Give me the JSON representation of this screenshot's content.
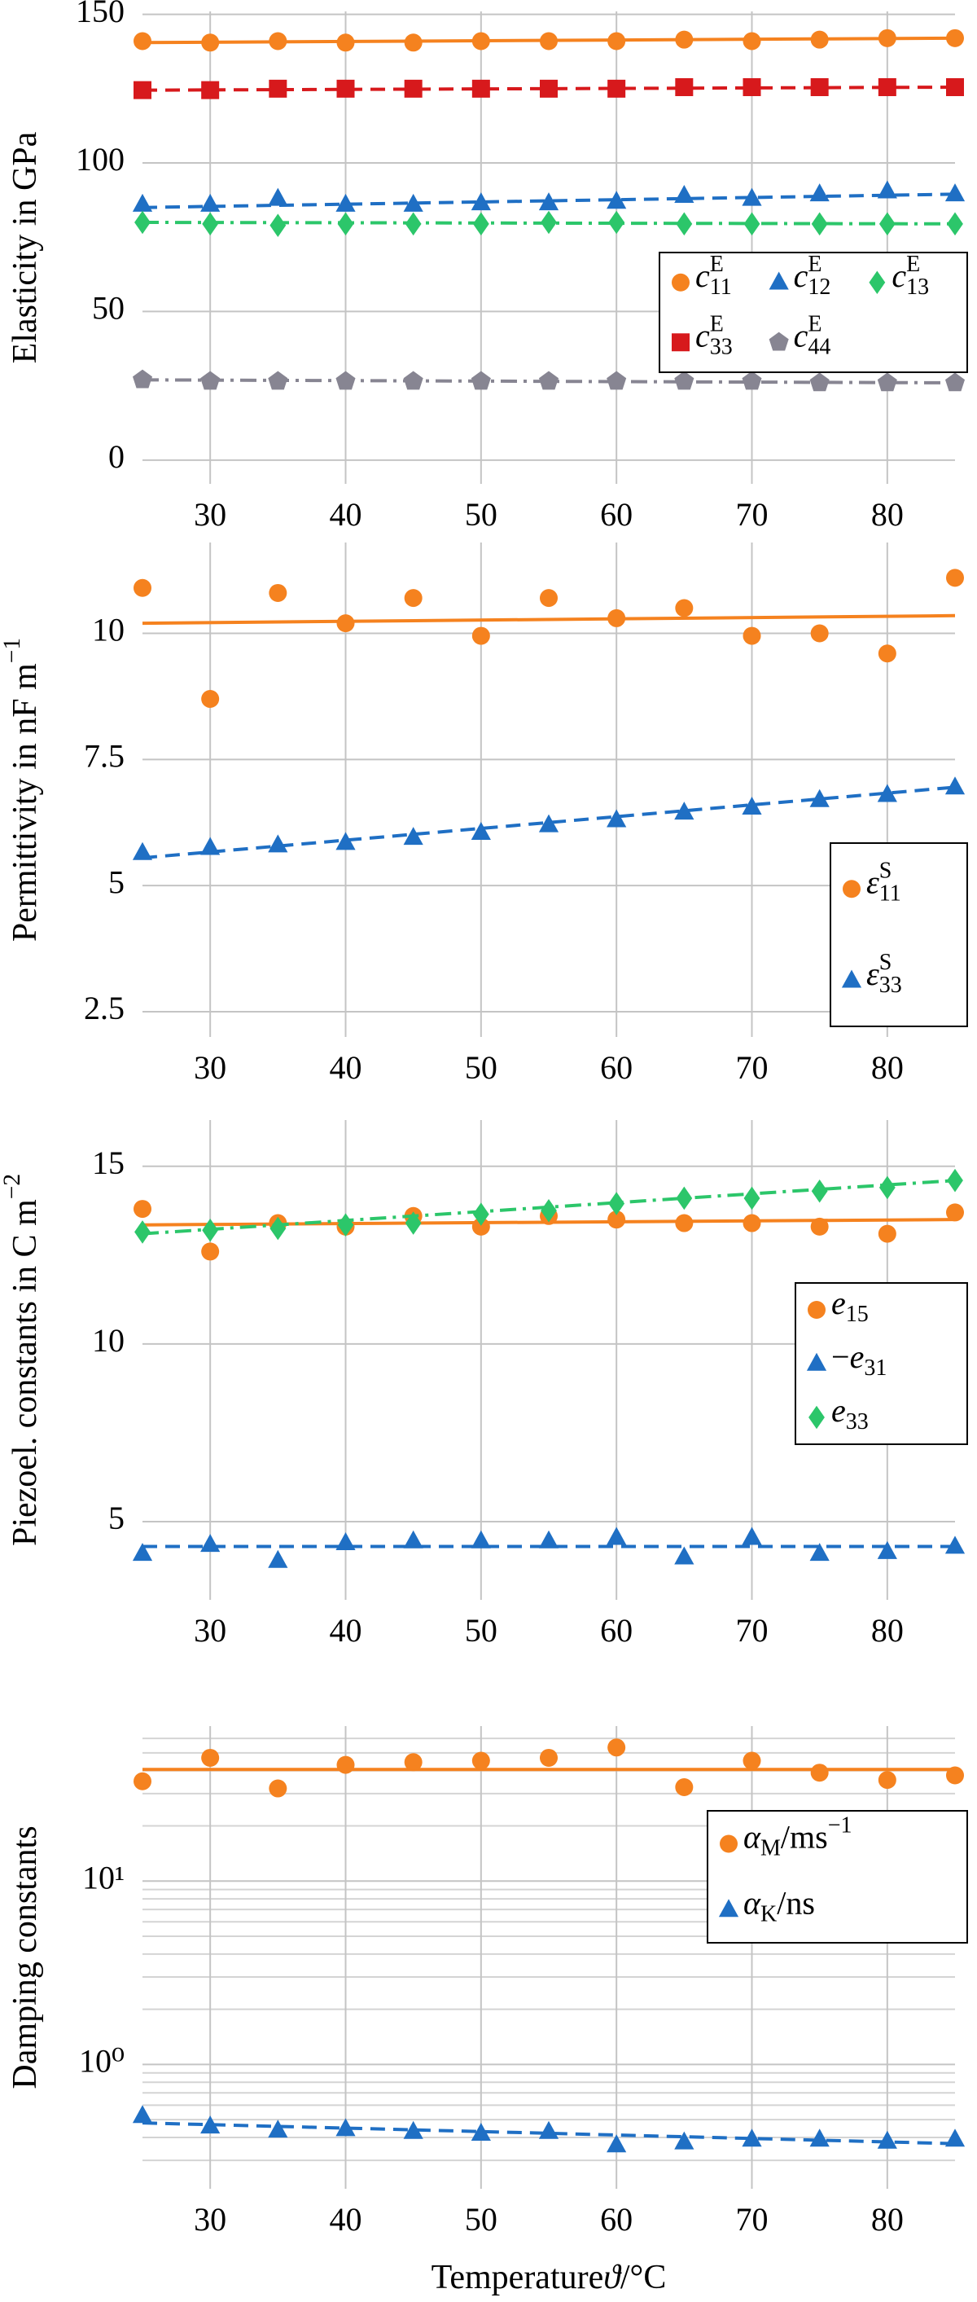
{
  "chart_data": [
    {
      "type": "line",
      "ylabel": [
        [
          "Elasticity in GPa",
          "n"
        ]
      ],
      "x": [
        25,
        30,
        35,
        40,
        45,
        50,
        55,
        60,
        65,
        70,
        75,
        80,
        85
      ],
      "xlim": [
        25,
        85
      ],
      "xticks": [
        30,
        40,
        50,
        60,
        70,
        80
      ],
      "ylim": [
        -8,
        151
      ],
      "yticks": [
        0,
        50,
        100,
        150
      ],
      "grid": true,
      "legend": "center right",
      "legend_columns": 3,
      "series": [
        {
          "name": [
            [
              "c",
              "i"
            ],
            [
              "11",
              "sub"
            ],
            [
              "E",
              "sup"
            ]
          ],
          "color": "#f5821f",
          "marker": "circle",
          "dash": "solid",
          "values": [
            141,
            140.5,
            141,
            140.5,
            140.5,
            141,
            141,
            141,
            141.5,
            141,
            141.5,
            142,
            142
          ],
          "fit": [
            140.5,
            142
          ]
        },
        {
          "name": [
            [
              "c",
              "i"
            ],
            [
              "12",
              "sub"
            ],
            [
              "E",
              "sup"
            ]
          ],
          "color": "#1f6fc4",
          "marker": "triangle",
          "dash": "dashed",
          "values": [
            86,
            86,
            88,
            86,
            86,
            86.5,
            86.5,
            87,
            89,
            88,
            89.5,
            90.5,
            89.5
          ],
          "fit": [
            85,
            89.5
          ]
        },
        {
          "name": [
            [
              "c",
              "i"
            ],
            [
              "13",
              "sub"
            ],
            [
              "E",
              "sup"
            ]
          ],
          "color": "#2cc66a",
          "marker": "diamond",
          "dash": "dashdot",
          "values": [
            80,
            79.5,
            79,
            79.5,
            79.5,
            79.5,
            80,
            80,
            79.5,
            79.5,
            79.5,
            79.5,
            79.5
          ],
          "fit": [
            80,
            79.5
          ]
        },
        {
          "name": [
            [
              "c",
              "i"
            ],
            [
              "33",
              "sub"
            ],
            [
              "E",
              "sup"
            ]
          ],
          "color": "#d7191c",
          "marker": "square",
          "dash": "dashed",
          "values": [
            124.5,
            124.5,
            125,
            125,
            125,
            125,
            125,
            125,
            125.5,
            125.5,
            125.5,
            125.5,
            125.5
          ],
          "fit": [
            124.5,
            125.5
          ]
        },
        {
          "name": [
            [
              "c",
              "i"
            ],
            [
              "44",
              "sub"
            ],
            [
              "E",
              "sup"
            ]
          ],
          "color": "#878592",
          "marker": "pentagon",
          "dash": "dashdot",
          "values": [
            27,
            26.5,
            26.5,
            26.5,
            26.5,
            26.5,
            26.5,
            26.5,
            26.5,
            26.5,
            26,
            26,
            26
          ],
          "fit": [
            27,
            26
          ]
        }
      ]
    },
    {
      "type": "line",
      "ylabel": [
        [
          "Permittivity in nF m",
          "n"
        ],
        [
          "−1",
          "sup"
        ]
      ],
      "x": [
        25,
        30,
        35,
        40,
        45,
        50,
        55,
        60,
        65,
        70,
        75,
        80,
        85
      ],
      "xlim": [
        25,
        85
      ],
      "xticks": [
        30,
        40,
        50,
        60,
        70,
        80
      ],
      "ylim": [
        2.0,
        11.8
      ],
      "yticks": [
        2.5,
        5,
        7.5,
        10
      ],
      "grid": true,
      "legend": "lower right",
      "legend_columns": 1,
      "series": [
        {
          "name": [
            [
              "ε",
              "i"
            ],
            [
              "11",
              "sub"
            ],
            [
              "S",
              "sup"
            ]
          ],
          "color": "#f5821f",
          "marker": "circle",
          "dash": "solid",
          "values": [
            10.9,
            8.7,
            10.8,
            10.2,
            10.7,
            9.95,
            10.7,
            10.3,
            10.5,
            9.95,
            10.0,
            9.6,
            11.1
          ],
          "fit": [
            10.2,
            10.35
          ]
        },
        {
          "name": [
            [
              "ε",
              "i"
            ],
            [
              "33",
              "sub"
            ],
            [
              "S",
              "sup"
            ]
          ],
          "color": "#1f6fc4",
          "marker": "triangle",
          "dash": "dashed",
          "values": [
            5.65,
            5.75,
            5.8,
            5.85,
            5.95,
            6.05,
            6.2,
            6.3,
            6.45,
            6.55,
            6.7,
            6.8,
            6.95
          ],
          "fit": [
            5.55,
            6.95
          ]
        }
      ]
    },
    {
      "type": "line",
      "ylabel": [
        [
          "Piezoel. constants in C m",
          "n"
        ],
        [
          "−2",
          "sup"
        ]
      ],
      "x": [
        25,
        30,
        35,
        40,
        45,
        50,
        55,
        60,
        65,
        70,
        75,
        80,
        85
      ],
      "xlim": [
        25,
        85
      ],
      "xticks": [
        30,
        40,
        50,
        60,
        70,
        80
      ],
      "ylim": [
        2.8,
        16.3
      ],
      "yticks": [
        5,
        10,
        15
      ],
      "grid": true,
      "legend": "center right",
      "legend_columns": 1,
      "series": [
        {
          "name": [
            [
              "e",
              "i"
            ],
            [
              "15",
              "sub"
            ]
          ],
          "color": "#f5821f",
          "marker": "circle",
          "dash": "solid",
          "values": [
            13.8,
            12.6,
            13.4,
            13.3,
            13.6,
            13.3,
            13.6,
            13.5,
            13.4,
            13.4,
            13.3,
            13.1,
            13.7
          ],
          "fit": [
            13.35,
            13.5
          ]
        },
        {
          "name": [
            [
              "−",
              "n"
            ],
            [
              "e",
              "i"
            ],
            [
              "31",
              "sub"
            ]
          ],
          "color": "#1f6fc4",
          "marker": "triangle",
          "dash": "dashed",
          "values": [
            4.1,
            4.35,
            3.9,
            4.4,
            4.45,
            4.45,
            4.45,
            4.55,
            4.0,
            4.55,
            4.1,
            4.15,
            4.3
          ],
          "fit": [
            4.3,
            4.3
          ]
        },
        {
          "name": [
            [
              "e",
              "i"
            ],
            [
              "33",
              "sub"
            ]
          ],
          "color": "#2cc66a",
          "marker": "diamond",
          "dash": "dashdot",
          "values": [
            13.15,
            13.2,
            13.25,
            13.35,
            13.4,
            13.65,
            13.75,
            13.95,
            14.1,
            14.1,
            14.3,
            14.4,
            14.6
          ],
          "fit": [
            13.1,
            14.6
          ]
        }
      ]
    },
    {
      "type": "line",
      "log_y": true,
      "ylabel": [
        [
          "Damping constants",
          "n"
        ]
      ],
      "xlabel": [
        [
          "Temperature ",
          "n"
        ],
        [
          "ϑ",
          "i"
        ],
        [
          "/°C",
          "n"
        ]
      ],
      "x": [
        25,
        30,
        35,
        40,
        45,
        50,
        55,
        60,
        65,
        70,
        75,
        80,
        85
      ],
      "xlim": [
        25,
        85
      ],
      "xticks": [
        30,
        40,
        50,
        60,
        70,
        80
      ],
      "ylim": [
        0.21,
        70
      ],
      "yticks": [
        {
          "value": 1,
          "label": "10⁰"
        },
        {
          "value": 10,
          "label": "10¹"
        }
      ],
      "minor_yticks": [
        0.3,
        0.4,
        0.5,
        0.6,
        0.7,
        0.8,
        0.9,
        2,
        3,
        4,
        5,
        6,
        7,
        8,
        9,
        20,
        30,
        40,
        50,
        60
      ],
      "grid": true,
      "legend": "center right",
      "legend_columns": 1,
      "series": [
        {
          "name": [
            [
              "α",
              "i"
            ],
            [
              "M",
              "sub"
            ],
            [
              "/ms",
              "n"
            ],
            [
              "−1",
              "sup"
            ]
          ],
          "color": "#f5821f",
          "marker": "circle",
          "dash": "solid",
          "values": [
            35,
            47,
            32,
            43,
            44.5,
            45.3,
            47,
            53.5,
            32.5,
            45.3,
            39,
            35.6,
            37.7
          ],
          "fit": [
            40.6,
            40.6
          ]
        },
        {
          "name": [
            [
              "α",
              "i"
            ],
            [
              "K",
              "sub"
            ],
            [
              "/ns",
              "n"
            ]
          ],
          "color": "#1f6fc4",
          "marker": "triangle",
          "dash": "dashed",
          "values": [
            0.525,
            0.46,
            0.437,
            0.445,
            0.43,
            0.42,
            0.43,
            0.363,
            0.377,
            0.39,
            0.39,
            0.38,
            0.39
          ],
          "fit": [
            0.48,
            0.37
          ]
        }
      ]
    }
  ]
}
